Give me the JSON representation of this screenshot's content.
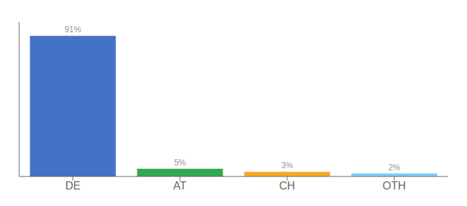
{
  "chart_data": {
    "type": "bar",
    "categories": [
      "DE",
      "AT",
      "CH",
      "OTH"
    ],
    "values": [
      91,
      5,
      3,
      2
    ],
    "colors": [
      "#4472c4",
      "#33a853",
      "#f9a825",
      "#7ecef4"
    ],
    "value_labels": [
      "91%",
      "5%",
      "3%",
      "2%"
    ],
    "data_labels": true,
    "ylim": [
      0,
      100
    ],
    "tick_labels": "x",
    "grid": false
  }
}
